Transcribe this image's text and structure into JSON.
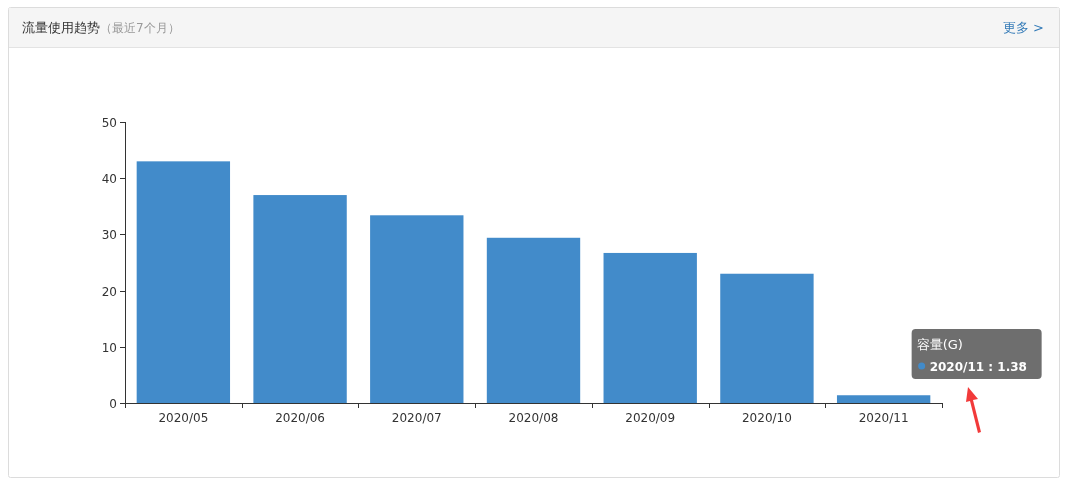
{
  "chart_data": {
    "type": "bar",
    "title": "流量使用趋势",
    "subtitle": "（最近7个月）",
    "categories": [
      "2020/05",
      "2020/06",
      "2020/07",
      "2020/08",
      "2020/09",
      "2020/10",
      "2020/11"
    ],
    "series": [
      {
        "name": "容量(G)",
        "color": "#428bca",
        "values": [
          43,
          37,
          33.4,
          29.4,
          26.7,
          23,
          1.38
        ]
      }
    ],
    "ylim": [
      0,
      50
    ],
    "yticks": [
      0,
      10,
      20,
      30,
      40,
      50
    ],
    "grid": false,
    "legend": false,
    "annotations": [
      "更多 >",
      "2020/11 : 1.38"
    ]
  }
}
